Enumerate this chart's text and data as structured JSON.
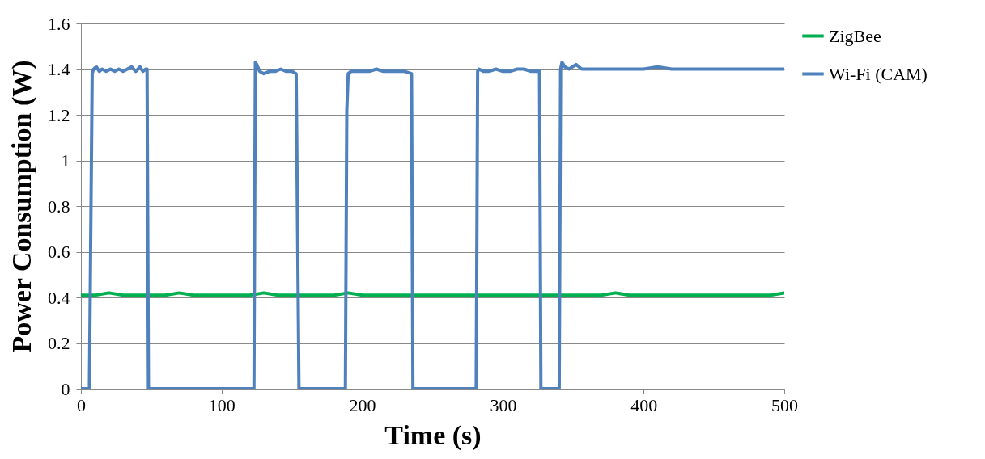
{
  "chart_data": {
    "type": "line",
    "xlabel": "Time (s)",
    "ylabel": "Power Consumption (W)",
    "xlim": [
      0,
      500
    ],
    "xticks": [
      0,
      100,
      200,
      300,
      400,
      500
    ],
    "ylim": [
      0,
      1.6
    ],
    "yticks": [
      0,
      0.2,
      0.4,
      0.6,
      0.8,
      1,
      1.2,
      1.4,
      1.6
    ],
    "grid": "y",
    "legend": "right",
    "line_style": "solid",
    "series": [
      {
        "name": "ZigBee",
        "color": "#00b050",
        "x": [
          0,
          10,
          20,
          30,
          40,
          50,
          60,
          70,
          80,
          90,
          100,
          110,
          120,
          130,
          140,
          150,
          160,
          170,
          180,
          190,
          200,
          210,
          220,
          230,
          240,
          250,
          260,
          270,
          280,
          290,
          300,
          310,
          320,
          330,
          340,
          350,
          360,
          370,
          380,
          390,
          400,
          410,
          420,
          430,
          440,
          450,
          460,
          470,
          480,
          490,
          500
        ],
        "values": [
          0.41,
          0.41,
          0.42,
          0.41,
          0.41,
          0.41,
          0.41,
          0.42,
          0.41,
          0.41,
          0.41,
          0.41,
          0.41,
          0.42,
          0.41,
          0.41,
          0.41,
          0.41,
          0.41,
          0.42,
          0.41,
          0.41,
          0.41,
          0.41,
          0.41,
          0.41,
          0.41,
          0.41,
          0.41,
          0.41,
          0.41,
          0.41,
          0.41,
          0.41,
          0.41,
          0.41,
          0.41,
          0.41,
          0.42,
          0.41,
          0.41,
          0.41,
          0.41,
          0.41,
          0.41,
          0.41,
          0.41,
          0.41,
          0.41,
          0.41,
          0.42
        ]
      },
      {
        "name": "Wi-Fi (CAM)",
        "color": "#4f81bd",
        "x": [
          0,
          6,
          8,
          9,
          11,
          13,
          15,
          18,
          21,
          24,
          27,
          30,
          33,
          36,
          39,
          42,
          44,
          46,
          47,
          48,
          60,
          80,
          100,
          120,
          123,
          124,
          125,
          127,
          130,
          134,
          138,
          142,
          146,
          150,
          153,
          155,
          170,
          188,
          189,
          190,
          192,
          195,
          200,
          205,
          210,
          215,
          220,
          225,
          230,
          235,
          236,
          250,
          270,
          281,
          282,
          283,
          286,
          290,
          295,
          300,
          305,
          310,
          315,
          320,
          326,
          327,
          335,
          340,
          341,
          342,
          344,
          347,
          352,
          356,
          360,
          370,
          380,
          390,
          400,
          410,
          420,
          430,
          440,
          450,
          460,
          470,
          480,
          490,
          500
        ],
        "values": [
          0,
          0,
          1.38,
          1.4,
          1.41,
          1.39,
          1.4,
          1.39,
          1.4,
          1.39,
          1.4,
          1.39,
          1.4,
          1.41,
          1.39,
          1.41,
          1.39,
          1.4,
          1.4,
          0,
          0,
          0,
          0,
          0,
          0,
          1.43,
          1.42,
          1.39,
          1.38,
          1.39,
          1.39,
          1.4,
          1.39,
          1.39,
          1.38,
          0,
          0,
          0,
          1.22,
          1.38,
          1.39,
          1.39,
          1.39,
          1.39,
          1.4,
          1.39,
          1.39,
          1.39,
          1.39,
          1.38,
          0,
          0,
          0,
          0,
          1.39,
          1.4,
          1.39,
          1.39,
          1.4,
          1.39,
          1.39,
          1.4,
          1.4,
          1.39,
          1.39,
          0,
          0,
          0,
          1.4,
          1.43,
          1.41,
          1.4,
          1.42,
          1.4,
          1.4,
          1.4,
          1.4,
          1.4,
          1.4,
          1.41,
          1.4,
          1.4,
          1.4,
          1.4,
          1.4,
          1.4,
          1.4,
          1.4,
          1.4
        ]
      }
    ]
  }
}
